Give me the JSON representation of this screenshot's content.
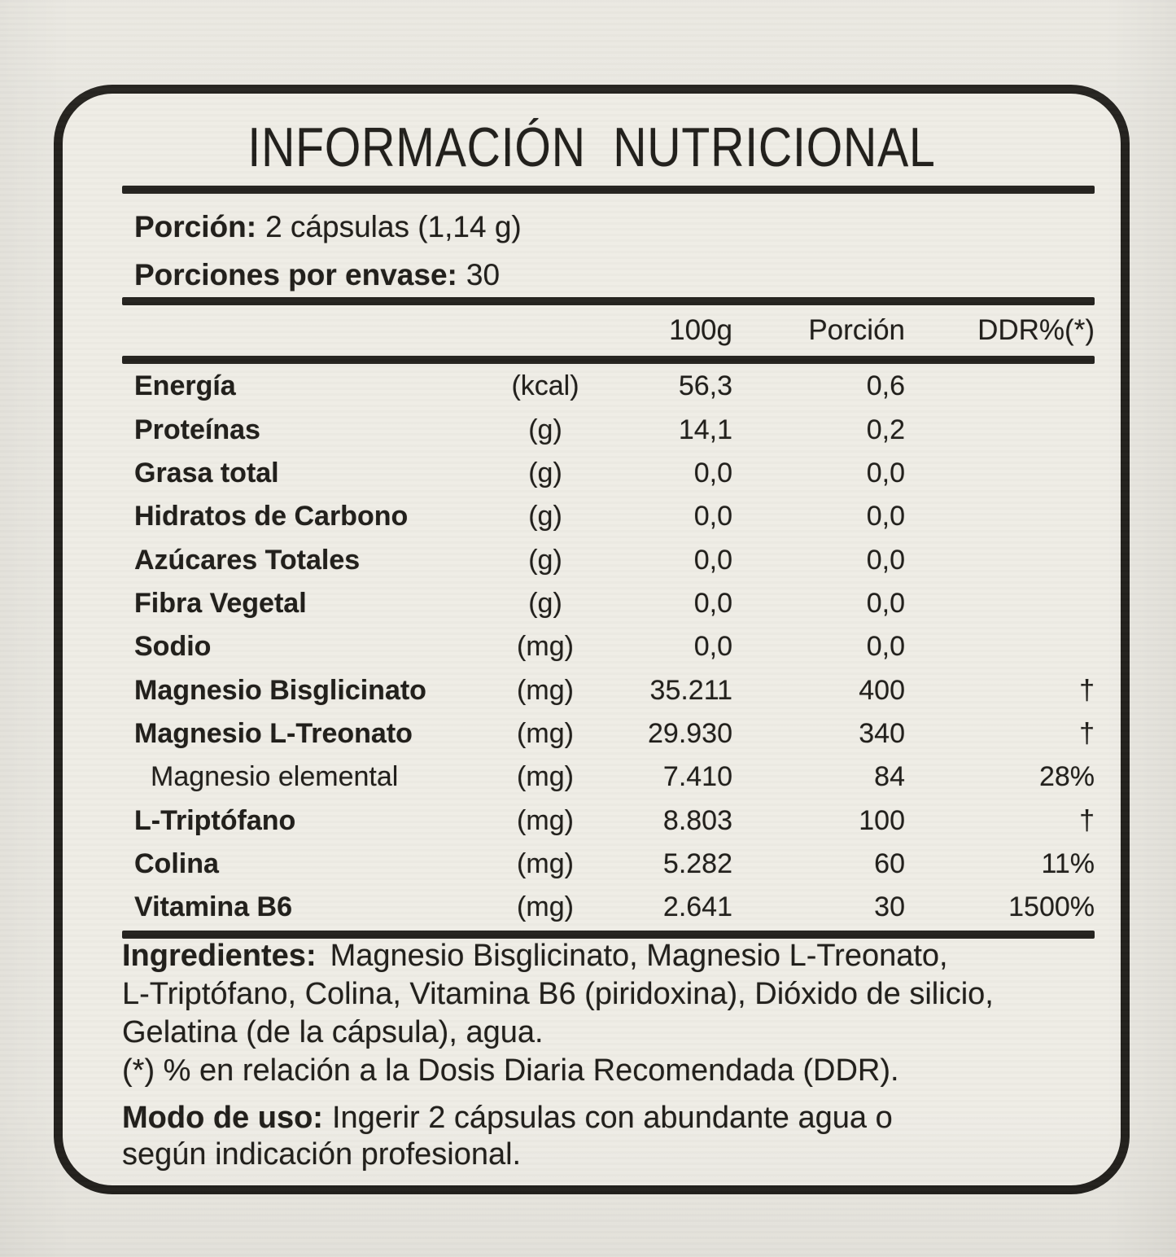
{
  "title": "INFORMACIÓN  NUTRICIONAL",
  "serving": {
    "portion_label": "Porción:",
    "portion_value": "2 cápsulas (1,14 g)",
    "per_container_label": "Porciones por envase:",
    "per_container_value": "30"
  },
  "table": {
    "headers": {
      "per100": "100g",
      "portion": "Porción",
      "ddr": "DDR%(*)"
    },
    "rows": [
      {
        "name": "Energía",
        "unit": "(kcal)",
        "per100": "56,3",
        "portion": "0,6",
        "ddr": "",
        "bold": true,
        "indent": false
      },
      {
        "name": "Proteínas",
        "unit": "(g)",
        "per100": "14,1",
        "portion": "0,2",
        "ddr": "",
        "bold": true,
        "indent": false
      },
      {
        "name": "Grasa total",
        "unit": "(g)",
        "per100": "0,0",
        "portion": "0,0",
        "ddr": "",
        "bold": true,
        "indent": false
      },
      {
        "name": "Hidratos de Carbono",
        "unit": "(g)",
        "per100": "0,0",
        "portion": "0,0",
        "ddr": "",
        "bold": true,
        "indent": false
      },
      {
        "name": "Azúcares Totales",
        "unit": "(g)",
        "per100": "0,0",
        "portion": "0,0",
        "ddr": "",
        "bold": true,
        "indent": false
      },
      {
        "name": "Fibra Vegetal",
        "unit": "(g)",
        "per100": "0,0",
        "portion": "0,0",
        "ddr": "",
        "bold": true,
        "indent": false
      },
      {
        "name": "Sodio",
        "unit": "(mg)",
        "per100": "0,0",
        "portion": "0,0",
        "ddr": "",
        "bold": true,
        "indent": false
      },
      {
        "name": "Magnesio Bisglicinato",
        "unit": "(mg)",
        "per100": "35.211",
        "portion": "400",
        "ddr": "†",
        "bold": true,
        "indent": false
      },
      {
        "name": "Magnesio L-Treonato",
        "unit": "(mg)",
        "per100": "29.930",
        "portion": "340",
        "ddr": "†",
        "bold": true,
        "indent": false
      },
      {
        "name": "Magnesio elemental",
        "unit": "(mg)",
        "per100": "7.410",
        "portion": "84",
        "ddr": "28%",
        "bold": false,
        "indent": true
      },
      {
        "name": "L-Triptófano",
        "unit": "(mg)",
        "per100": "8.803",
        "portion": "100",
        "ddr": "†",
        "bold": true,
        "indent": false
      },
      {
        "name": "Colina",
        "unit": "(mg)",
        "per100": "5.282",
        "portion": "60",
        "ddr": "11%",
        "bold": true,
        "indent": false
      },
      {
        "name": "Vitamina B6",
        "unit": "(mg)",
        "per100": "2.641",
        "portion": "30",
        "ddr": "1500%",
        "bold": true,
        "indent": false
      }
    ]
  },
  "footer": {
    "ingredients_label": "Ingredientes:",
    "ingredients_lines": [
      "Magnesio Bisglicinato, Magnesio L-Treonato,",
      "L-Triptófano, Colina, Vitamina B6 (piridoxina), Dióxido de silicio,",
      "Gelatina (de la cápsula), agua."
    ],
    "footnote": "(*) % en relación a la Dosis Diaria Recomendada (DDR).",
    "usage_label": "Modo de uso:",
    "usage_lines": [
      "Ingerir 2 cápsulas con abundante agua o",
      "según indicación profesional."
    ]
  },
  "colors": {
    "ink": "#24221e",
    "background": "#eae8e1",
    "label_background": "#efede6"
  }
}
